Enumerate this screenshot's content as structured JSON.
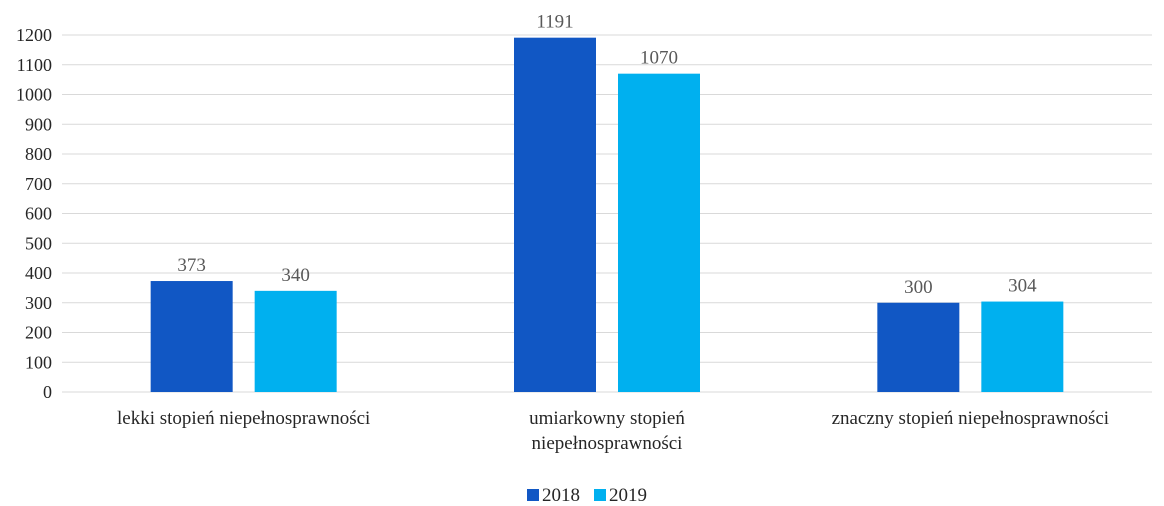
{
  "chart_data": {
    "type": "bar",
    "categories": [
      [
        "lekki stopień niepełnosprawności"
      ],
      [
        "umiarkowny stopień",
        "niepełnosprawności"
      ],
      [
        "znaczny stopień niepełnosprawności"
      ]
    ],
    "series": [
      {
        "name": "2018",
        "color": "#1157c4",
        "values": [
          373,
          1191,
          300
        ]
      },
      {
        "name": "2019",
        "color": "#00b0ef",
        "values": [
          340,
          1070,
          304
        ]
      }
    ],
    "ylim": [
      0,
      1200
    ],
    "yticks": [
      0,
      100,
      200,
      300,
      400,
      500,
      600,
      700,
      800,
      900,
      1000,
      1100,
      1200
    ],
    "grid": true,
    "data_labels": true,
    "legend_position": "bottom",
    "title": "",
    "xlabel": "",
    "ylabel": ""
  }
}
